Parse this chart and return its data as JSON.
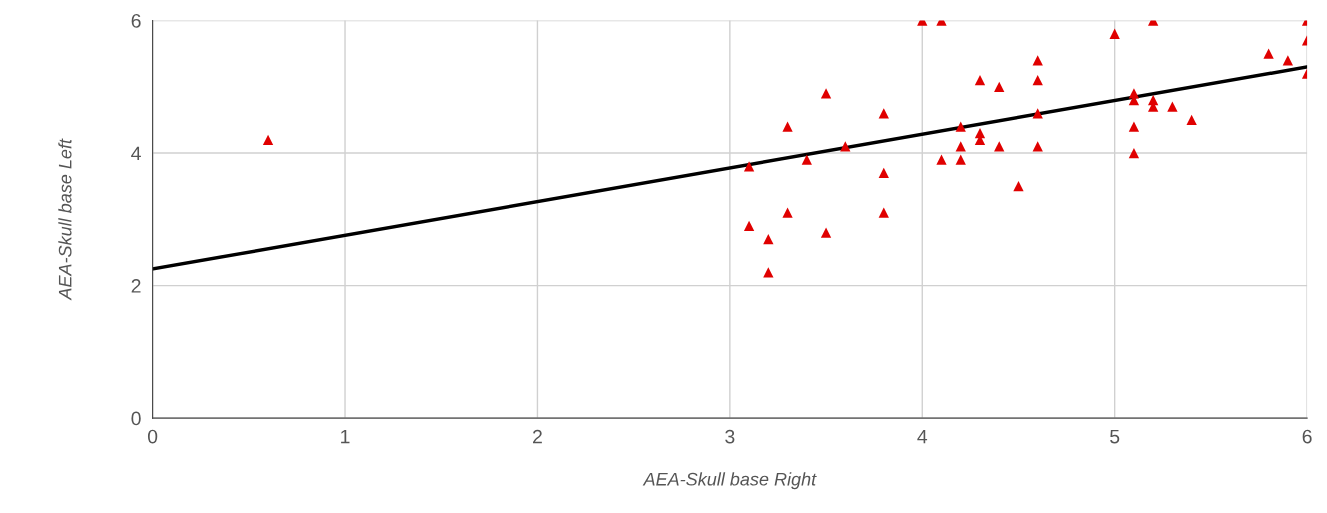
{
  "chart_data": {
    "type": "scatter",
    "xlabel": "AEA-Skull base Right",
    "ylabel": "AEA-Skull base Left",
    "xlim": [
      0,
      6
    ],
    "ylim": [
      0,
      6
    ],
    "xticks": [
      0,
      1,
      2,
      3,
      4,
      5,
      6
    ],
    "yticks": [
      0,
      2,
      4,
      6
    ],
    "grid": true,
    "series": [
      {
        "color": "#e00000",
        "marker": "triangle",
        "x": [
          0.6,
          3.1,
          3.1,
          3.2,
          3.2,
          3.3,
          3.3,
          3.4,
          3.5,
          3.5,
          3.6,
          3.8,
          3.8,
          3.8,
          4.0,
          4.1,
          4.1,
          4.2,
          4.2,
          4.2,
          4.3,
          4.3,
          4.3,
          4.4,
          4.4,
          4.5,
          4.6,
          4.6,
          4.6,
          4.6,
          5.0,
          5.1,
          5.1,
          5.1,
          5.1,
          5.2,
          5.2,
          5.2,
          5.3,
          5.4,
          5.8,
          5.9,
          6.0,
          6.0,
          6.0
        ],
        "values": [
          4.2,
          3.8,
          2.9,
          2.2,
          2.7,
          4.4,
          3.1,
          3.9,
          4.9,
          2.8,
          4.1,
          4.6,
          3.7,
          3.1,
          6.0,
          6.0,
          3.9,
          4.4,
          4.1,
          3.9,
          5.1,
          4.3,
          4.2,
          5.0,
          4.1,
          3.5,
          5.4,
          5.1,
          4.6,
          4.1,
          5.8,
          4.9,
          4.8,
          4.4,
          4.0,
          6.0,
          4.8,
          4.7,
          4.7,
          4.5,
          5.5,
          5.4,
          6.0,
          5.7,
          5.2
        ]
      },
      {
        "type": "line",
        "color": "#000000",
        "marker": "none",
        "x": [
          0,
          6
        ],
        "values": [
          2.25,
          5.3
        ]
      }
    ]
  }
}
